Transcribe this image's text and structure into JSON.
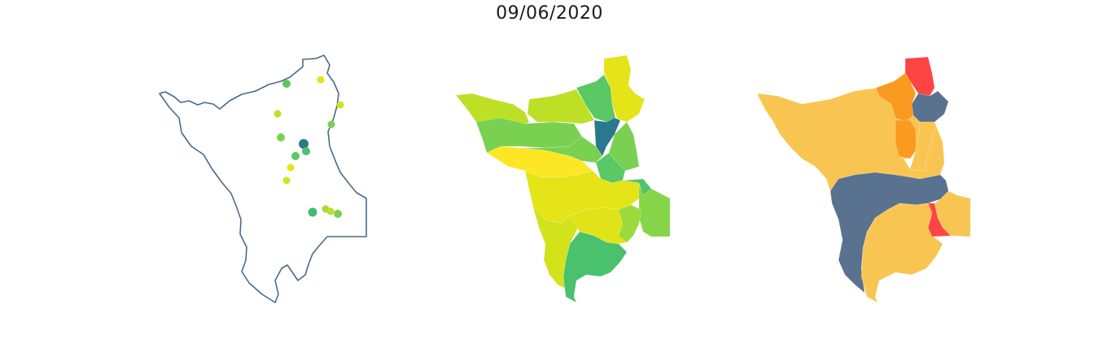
{
  "title": "09/06/2020",
  "colors": {
    "outline": "#4a6a8a",
    "background": "#ffffff"
  },
  "points_panel": {
    "points": [
      {
        "color": "#5ac864"
      },
      {
        "color": "#e4e419"
      },
      {
        "color": "#bddf26"
      },
      {
        "color": "#d2e21b"
      },
      {
        "color": "#7ad151"
      },
      {
        "color": "#7ad151"
      },
      {
        "color": "#2a788e"
      },
      {
        "color": "#4ac16d"
      },
      {
        "color": "#5ac864"
      },
      {
        "color": "#e4e419"
      },
      {
        "color": "#d2e21b"
      },
      {
        "color": "#3fbc73"
      },
      {
        "color": "#a5db36"
      },
      {
        "color": "#bddf26"
      },
      {
        "color": "#7ad151"
      }
    ]
  },
  "choropleth_panel": {
    "regions": [
      {
        "color": "#bddf26"
      },
      {
        "color": "#7ad151"
      },
      {
        "color": "#e4e419"
      },
      {
        "color": "#5ac864"
      },
      {
        "color": "#2a788e"
      },
      {
        "color": "#bddf26"
      },
      {
        "color": "#7ad151"
      },
      {
        "color": "#fde725"
      },
      {
        "color": "#7ad151"
      },
      {
        "color": "#5ac864"
      },
      {
        "color": "#e4e419"
      },
      {
        "color": "#d2e21b"
      },
      {
        "color": "#dfe318"
      },
      {
        "color": "#4ac16d"
      },
      {
        "color": "#86d549"
      },
      {
        "color": "#9bd93c"
      },
      {
        "color": "#50c46a"
      }
    ]
  },
  "category_panel": {
    "regions": [
      {
        "color": "#f9c552"
      },
      {
        "color": "#ff4444"
      },
      {
        "color": "#fa9a1f"
      },
      {
        "color": "#58728f"
      },
      {
        "color": "#f9c552"
      },
      {
        "color": "#fa9a1f"
      },
      {
        "color": "#f9c552"
      },
      {
        "color": "#58728f"
      },
      {
        "color": "#f9c552"
      },
      {
        "color": "#ff4444"
      },
      {
        "color": "#f9c552"
      }
    ]
  }
}
